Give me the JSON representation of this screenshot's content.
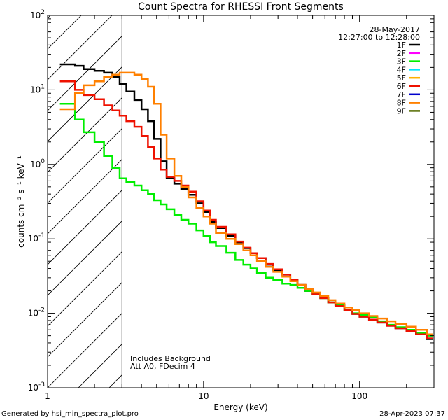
{
  "chart_data": {
    "type": "line",
    "title": "Count Spectra for RHESSI Front Segments",
    "xlabel": "Energy (keV)",
    "ylabel": "counts cm⁻² s⁻¹ keV⁻¹",
    "x_scale": "log",
    "y_scale": "log",
    "xlim": [
      1,
      300
    ],
    "ylim": [
      0.001,
      100
    ],
    "x_ticks": [
      {
        "value": 1,
        "label": "1"
      },
      {
        "value": 10,
        "label": "10"
      },
      {
        "value": 100,
        "label": "100"
      }
    ],
    "y_ticks": [
      {
        "value": 100,
        "base": "10",
        "exp": "2"
      },
      {
        "value": 10,
        "base": "10",
        "exp": "1"
      },
      {
        "value": 1,
        "base": "10",
        "exp": "0"
      },
      {
        "value": 0.1,
        "base": "10",
        "exp": "-1"
      },
      {
        "value": 0.01,
        "base": "10",
        "exp": "-2"
      },
      {
        "value": 0.001,
        "base": "10",
        "exp": "-3"
      }
    ],
    "date": "28-May-2017",
    "time_range": "12:27:00 to 12:28:00",
    "annotations": [
      "Includes Background",
      "Att A0, FDecim 4"
    ],
    "hatched_region_max_kev": 3,
    "legend": [
      {
        "name": "1F",
        "color": "#000000"
      },
      {
        "name": "2F",
        "color": "#ff00ff"
      },
      {
        "name": "3F",
        "color": "#00ee00"
      },
      {
        "name": "4F",
        "color": "#00e5ff"
      },
      {
        "name": "5F",
        "color": "#ffb000"
      },
      {
        "name": "6F",
        "color": "#ee1100"
      },
      {
        "name": "7F",
        "color": "#0000cc"
      },
      {
        "name": "8F",
        "color": "#ff8000"
      },
      {
        "name": "9F",
        "color": "#556b00"
      }
    ],
    "series": [
      {
        "name": "1F",
        "color": "#000000",
        "x": [
          1.2,
          1.5,
          1.7,
          2.0,
          2.3,
          2.6,
          2.9,
          3.2,
          3.6,
          4.0,
          4.4,
          4.8,
          5.3,
          5.8,
          6.5,
          7.2,
          8.0,
          9.0,
          10,
          11,
          12,
          14,
          16,
          18,
          20,
          22,
          25,
          28,
          32,
          36,
          40,
          45,
          50,
          56,
          63,
          70,
          80,
          90,
          100,
          115,
          130,
          150,
          170,
          200,
          230,
          270
        ],
        "values": [
          22,
          21,
          19,
          18,
          17,
          15,
          12,
          9.5,
          7.3,
          5.5,
          3.8,
          2.2,
          1.1,
          0.65,
          0.55,
          0.47,
          0.39,
          0.3,
          0.23,
          0.17,
          0.14,
          0.11,
          0.09,
          0.075,
          0.064,
          0.055,
          0.045,
          0.038,
          0.033,
          0.028,
          0.024,
          0.02,
          0.018,
          0.016,
          0.014,
          0.013,
          0.011,
          0.0098,
          0.009,
          0.0082,
          0.0075,
          0.0068,
          0.0063,
          0.0058,
          0.0052,
          0.0045
        ]
      },
      {
        "name": "3F",
        "color": "#00ee00",
        "x": [
          1.2,
          1.5,
          1.7,
          2.0,
          2.3,
          2.6,
          2.9,
          3.2,
          3.6,
          4.0,
          4.4,
          4.8,
          5.3,
          5.8,
          6.5,
          7.2,
          8.0,
          9.0,
          10,
          11,
          12,
          14,
          16,
          18,
          20,
          22,
          25,
          28,
          32,
          36,
          40,
          45,
          50,
          56,
          63,
          70,
          80,
          90,
          100,
          115,
          130,
          150,
          170,
          200,
          230,
          270
        ],
        "values": [
          6.5,
          4.0,
          2.7,
          2.0,
          1.3,
          0.9,
          0.65,
          0.58,
          0.52,
          0.45,
          0.4,
          0.33,
          0.29,
          0.25,
          0.21,
          0.18,
          0.16,
          0.13,
          0.11,
          0.09,
          0.08,
          0.065,
          0.052,
          0.045,
          0.04,
          0.035,
          0.03,
          0.028,
          0.025,
          0.024,
          0.022,
          0.02,
          0.018,
          0.016,
          0.014,
          0.013,
          0.011,
          0.01,
          0.0095,
          0.0088,
          0.0078,
          0.007,
          0.0065,
          0.006,
          0.0055,
          0.005
        ]
      },
      {
        "name": "6F",
        "color": "#ee1100",
        "x": [
          1.2,
          1.5,
          1.7,
          2.0,
          2.3,
          2.6,
          2.9,
          3.2,
          3.6,
          4.0,
          4.4,
          4.8,
          5.3,
          5.8,
          6.5,
          7.2,
          8.0,
          9.0,
          10,
          11,
          12,
          14,
          16,
          18,
          20,
          22,
          25,
          28,
          32,
          36,
          40,
          45,
          50,
          56,
          63,
          70,
          80,
          90,
          100,
          115,
          130,
          150,
          170,
          200,
          230,
          270
        ],
        "values": [
          13,
          10,
          8.5,
          7.5,
          6.2,
          5.3,
          4.5,
          3.8,
          3.2,
          2.4,
          1.7,
          1.2,
          0.85,
          0.68,
          0.6,
          0.52,
          0.43,
          0.32,
          0.24,
          0.18,
          0.145,
          0.115,
          0.092,
          0.076,
          0.064,
          0.055,
          0.046,
          0.039,
          0.033,
          0.028,
          0.024,
          0.021,
          0.018,
          0.016,
          0.014,
          0.0125,
          0.011,
          0.0098,
          0.009,
          0.0082,
          0.0075,
          0.0068,
          0.0063,
          0.0058,
          0.0052,
          0.0046
        ]
      },
      {
        "name": "8F",
        "color": "#ff8000",
        "x": [
          1.2,
          1.5,
          1.7,
          2.0,
          2.3,
          2.6,
          2.9,
          3.2,
          3.6,
          4.0,
          4.4,
          4.8,
          5.3,
          5.8,
          6.5,
          7.2,
          8.0,
          9.0,
          10,
          11,
          12,
          14,
          16,
          18,
          20,
          22,
          25,
          28,
          32,
          36,
          40,
          45,
          50,
          56,
          63,
          70,
          80,
          90,
          100,
          115,
          130,
          150,
          170,
          200,
          230,
          270
        ],
        "values": [
          5.5,
          9.0,
          11.5,
          13,
          15,
          16,
          17,
          17,
          16,
          14,
          11,
          6.5,
          2.5,
          1.2,
          0.7,
          0.5,
          0.36,
          0.26,
          0.2,
          0.16,
          0.12,
          0.1,
          0.085,
          0.07,
          0.06,
          0.05,
          0.042,
          0.036,
          0.031,
          0.027,
          0.024,
          0.021,
          0.019,
          0.017,
          0.015,
          0.0135,
          0.012,
          0.011,
          0.01,
          0.0092,
          0.0085,
          0.0078,
          0.0072,
          0.0066,
          0.006,
          0.0052
        ]
      }
    ]
  },
  "footer": {
    "generated_by": "Generated by hsi_min_spectra_plot.pro",
    "timestamp": "28-Apr-2023 07:37"
  }
}
